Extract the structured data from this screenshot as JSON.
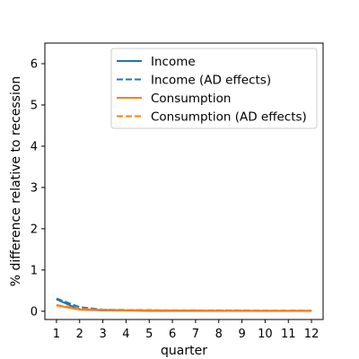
{
  "chart_data": {
    "type": "line",
    "xlabel": "quarter",
    "ylabel": "% difference relative to recession",
    "x": [
      1,
      2,
      3,
      4,
      5,
      6,
      7,
      8,
      9,
      10,
      11,
      12
    ],
    "xlim": [
      0.5,
      12.5
    ],
    "ylim": [
      -0.2,
      6.5
    ],
    "yticks": [
      0,
      1,
      2,
      3,
      4,
      5,
      6
    ],
    "grid": false,
    "legend_position": "top-right",
    "series": [
      {
        "name": "Income",
        "color": "#1f77b4",
        "dash": "solid",
        "values": [
          0.29,
          0.04,
          0.02,
          0.02,
          0.01,
          0.01,
          0.01,
          0.01,
          0.01,
          0.01,
          0.01,
          0.01
        ]
      },
      {
        "name": "Income (AD effects)",
        "color": "#1f77b4",
        "dash": "dashed",
        "values": [
          0.31,
          0.1,
          0.04,
          0.03,
          0.02,
          0.02,
          0.02,
          0.02,
          0.02,
          0.01,
          0.01,
          0.01
        ]
      },
      {
        "name": "Consumption",
        "color": "#ff7f0e",
        "dash": "solid",
        "values": [
          0.14,
          0.04,
          0.03,
          0.02,
          0.02,
          0.02,
          0.02,
          0.01,
          0.01,
          0.01,
          0.01,
          0.01
        ]
      },
      {
        "name": "Consumption (AD effects)",
        "color": "#ff7f0e",
        "dash": "dashed",
        "values": [
          0.15,
          0.06,
          0.04,
          0.03,
          0.03,
          0.02,
          0.02,
          0.02,
          0.02,
          0.02,
          0.02,
          0.02
        ]
      }
    ]
  }
}
